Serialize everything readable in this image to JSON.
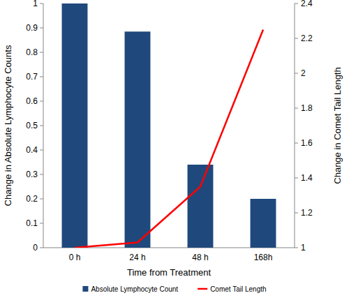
{
  "chart_data": {
    "type": "bar",
    "categories": [
      "0 h",
      "24 h",
      "48 h",
      "168h"
    ],
    "x_label": "Time from Treatment",
    "y_label": "Change in Absolute Lymphocyte Counts",
    "y2_label": "Change in Comet Tail Length",
    "series": [
      {
        "name": "Absolute Lymphocyte Count",
        "type": "bar",
        "color": "#1f497d",
        "values": [
          1,
          0.885,
          0.34,
          0.2
        ]
      },
      {
        "name": "Comet Tail Length",
        "type": "line",
        "axis": "y2",
        "color": "#ff0000",
        "values": [
          1.0,
          1.03,
          1.35,
          2.25
        ]
      }
    ],
    "ylim": [
      0,
      1
    ],
    "yticks": [
      0,
      0.1,
      0.2,
      0.3,
      0.4,
      0.5,
      0.6,
      0.7,
      0.8,
      0.9,
      1
    ],
    "y2lim": [
      1,
      2.4
    ],
    "y2ticks": [
      1,
      1.2,
      1.4,
      1.6,
      1.8,
      2,
      2.2,
      2.4
    ],
    "grid": false,
    "legend": "bottom"
  }
}
